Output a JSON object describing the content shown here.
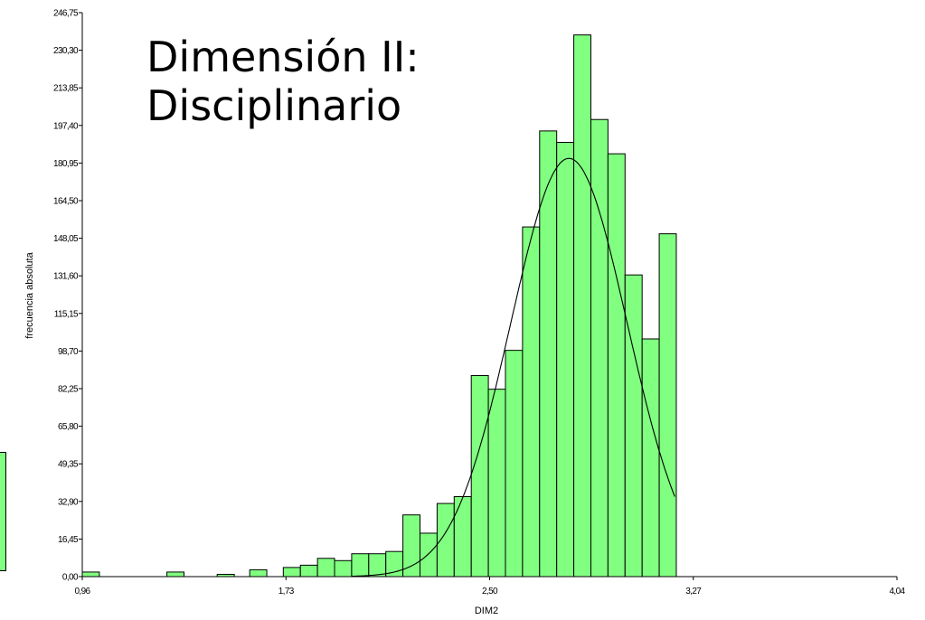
{
  "title_lines": [
    "Dimensión II:",
    "Disciplinario"
  ],
  "chart_data": {
    "type": "bar",
    "xlabel": "DIM2",
    "ylabel": "frecuencia absoluta",
    "xlim": [
      0.96,
      4.04
    ],
    "ylim": [
      0,
      246.75
    ],
    "x_ticks": [
      "0,96",
      "1,73",
      "2,50",
      "3,27",
      "4,04"
    ],
    "y_ticks": [
      "0,00",
      "16,45",
      "32,90",
      "49,35",
      "65,80",
      "82,25",
      "98,70",
      "115,15",
      "131,60",
      "148,05",
      "164,50",
      "180,95",
      "197,40",
      "213,85",
      "230,30",
      "246,75"
    ],
    "bar_color": "#80ff80",
    "bar_edge_color": "#000000",
    "bins": [
      {
        "x0": 0.96,
        "x1": 1.0246,
        "value": 2
      },
      {
        "x0": 1.28,
        "x1": 1.3446,
        "value": 2
      },
      {
        "x0": 1.47,
        "x1": 1.5346,
        "value": 1
      },
      {
        "x0": 1.593,
        "x1": 1.6576,
        "value": 3
      },
      {
        "x0": 1.72,
        "x1": 1.7846,
        "value": 4
      },
      {
        "x0": 1.7846,
        "x1": 1.8492,
        "value": 5
      },
      {
        "x0": 1.8492,
        "x1": 1.9138,
        "value": 8
      },
      {
        "x0": 1.9138,
        "x1": 1.9784,
        "value": 7
      },
      {
        "x0": 1.9784,
        "x1": 2.043,
        "value": 10
      },
      {
        "x0": 2.043,
        "x1": 2.1076,
        "value": 10
      },
      {
        "x0": 2.1076,
        "x1": 2.1722,
        "value": 11
      },
      {
        "x0": 2.1722,
        "x1": 2.2368,
        "value": 27
      },
      {
        "x0": 2.2368,
        "x1": 2.3014,
        "value": 19
      },
      {
        "x0": 2.3014,
        "x1": 2.366,
        "value": 32
      },
      {
        "x0": 2.366,
        "x1": 2.4306,
        "value": 35
      },
      {
        "x0": 2.4306,
        "x1": 2.4952,
        "value": 88
      },
      {
        "x0": 2.4952,
        "x1": 2.5598,
        "value": 82
      },
      {
        "x0": 2.5598,
        "x1": 2.6244,
        "value": 99
      },
      {
        "x0": 2.6244,
        "x1": 2.689,
        "value": 153
      },
      {
        "x0": 2.689,
        "x1": 2.7536,
        "value": 195
      },
      {
        "x0": 2.7536,
        "x1": 2.8182,
        "value": 190
      },
      {
        "x0": 2.8182,
        "x1": 2.8828,
        "value": 237
      },
      {
        "x0": 2.8828,
        "x1": 2.9474,
        "value": 200
      },
      {
        "x0": 2.9474,
        "x1": 3.012,
        "value": 185
      },
      {
        "x0": 3.012,
        "x1": 3.0766,
        "value": 132
      },
      {
        "x0": 3.0766,
        "x1": 3.1412,
        "value": 104
      },
      {
        "x0": 3.1412,
        "x1": 3.2058,
        "value": 150
      }
    ],
    "normal_curve": {
      "mean": 2.8,
      "peak_value": 183,
      "sd": 0.22,
      "x_start": 1.98,
      "x_end": 3.2
    }
  }
}
